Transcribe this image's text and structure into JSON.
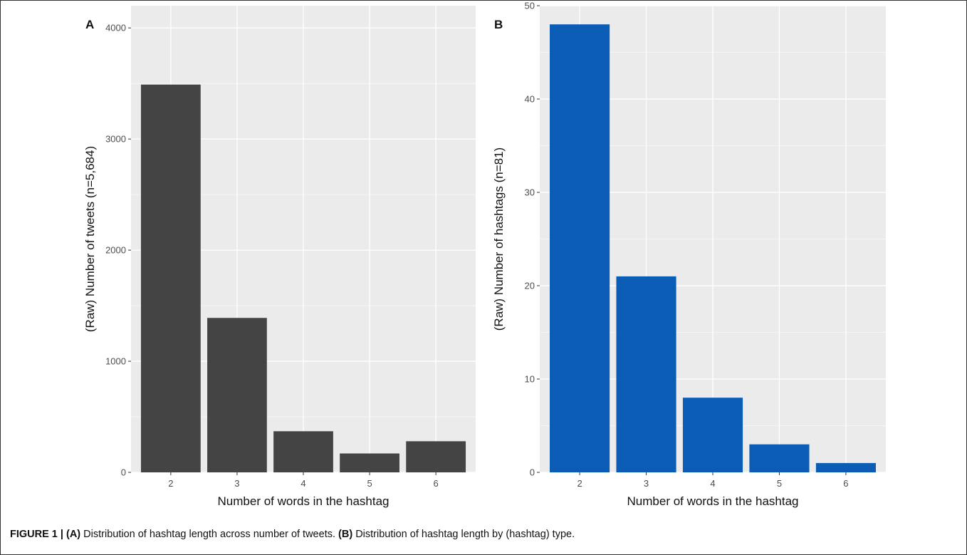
{
  "chart_data": [
    {
      "panel": "A",
      "type": "bar",
      "categories": [
        "2",
        "3",
        "4",
        "5",
        "6"
      ],
      "values": [
        3490,
        1390,
        370,
        170,
        280
      ],
      "xlabel": "Number of words in the hashtag",
      "ylabel": "(Raw) Number of tweets (n=5,684)",
      "ylim": [
        0,
        4200
      ],
      "yticks": [
        "0",
        "1000",
        "2000",
        "3000",
        "4000"
      ],
      "bar_color": "#444444",
      "panel_bg": "#ebebeb",
      "grid": true
    },
    {
      "panel": "B",
      "type": "bar",
      "categories": [
        "2",
        "3",
        "4",
        "5",
        "6"
      ],
      "values": [
        48,
        21,
        8,
        3,
        1
      ],
      "xlabel": "Number of words in the hashtag",
      "ylabel": "(Raw) Number of hashtags (n=81)",
      "ylim": [
        0,
        50
      ],
      "yticks": [
        "0",
        "10",
        "20",
        "30",
        "40",
        "50"
      ],
      "bar_color": "#0b5cb5",
      "panel_bg": "#ebebeb",
      "grid": true
    }
  ],
  "caption": {
    "prefix": "FIGURE 1 | ",
    "a_label": "(A)",
    "a_text": " Distribution of hashtag length across number of tweets. ",
    "b_label": "(B)",
    "b_text": " Distribution of hashtag length by (hashtag) type."
  }
}
